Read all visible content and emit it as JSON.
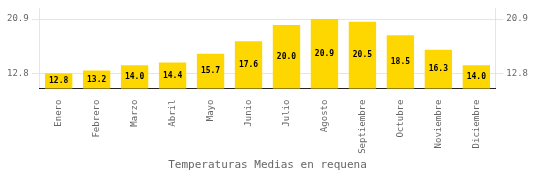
{
  "chart_data": {
    "type": "bar",
    "title": "Temperaturas Medias en requena",
    "categories": [
      "Enero",
      "Febrero",
      "Marzo",
      "Abril",
      "Mayo",
      "Junio",
      "Julio",
      "Agosto",
      "Septiembre",
      "Octubre",
      "Noviembre",
      "Diciembre"
    ],
    "values": [
      12.8,
      13.2,
      14.0,
      14.4,
      15.7,
      17.6,
      20.0,
      20.9,
      20.5,
      18.5,
      16.3,
      14.0
    ],
    "value_labels": [
      "12.8",
      "13.2",
      "14.0",
      "14.4",
      "15.7",
      "17.6",
      "20.0",
      "20.9",
      "20.5",
      "18.5",
      "16.3",
      "14.0"
    ],
    "data_labels": true,
    "color": "#FFD700",
    "ylim": [
      10.5,
      22.5
    ],
    "yticks": [
      12.8,
      20.9
    ],
    "y2lim": [
      10.5,
      22.5
    ],
    "y2ticks": [
      12.8,
      20.9
    ],
    "grid": true
  }
}
